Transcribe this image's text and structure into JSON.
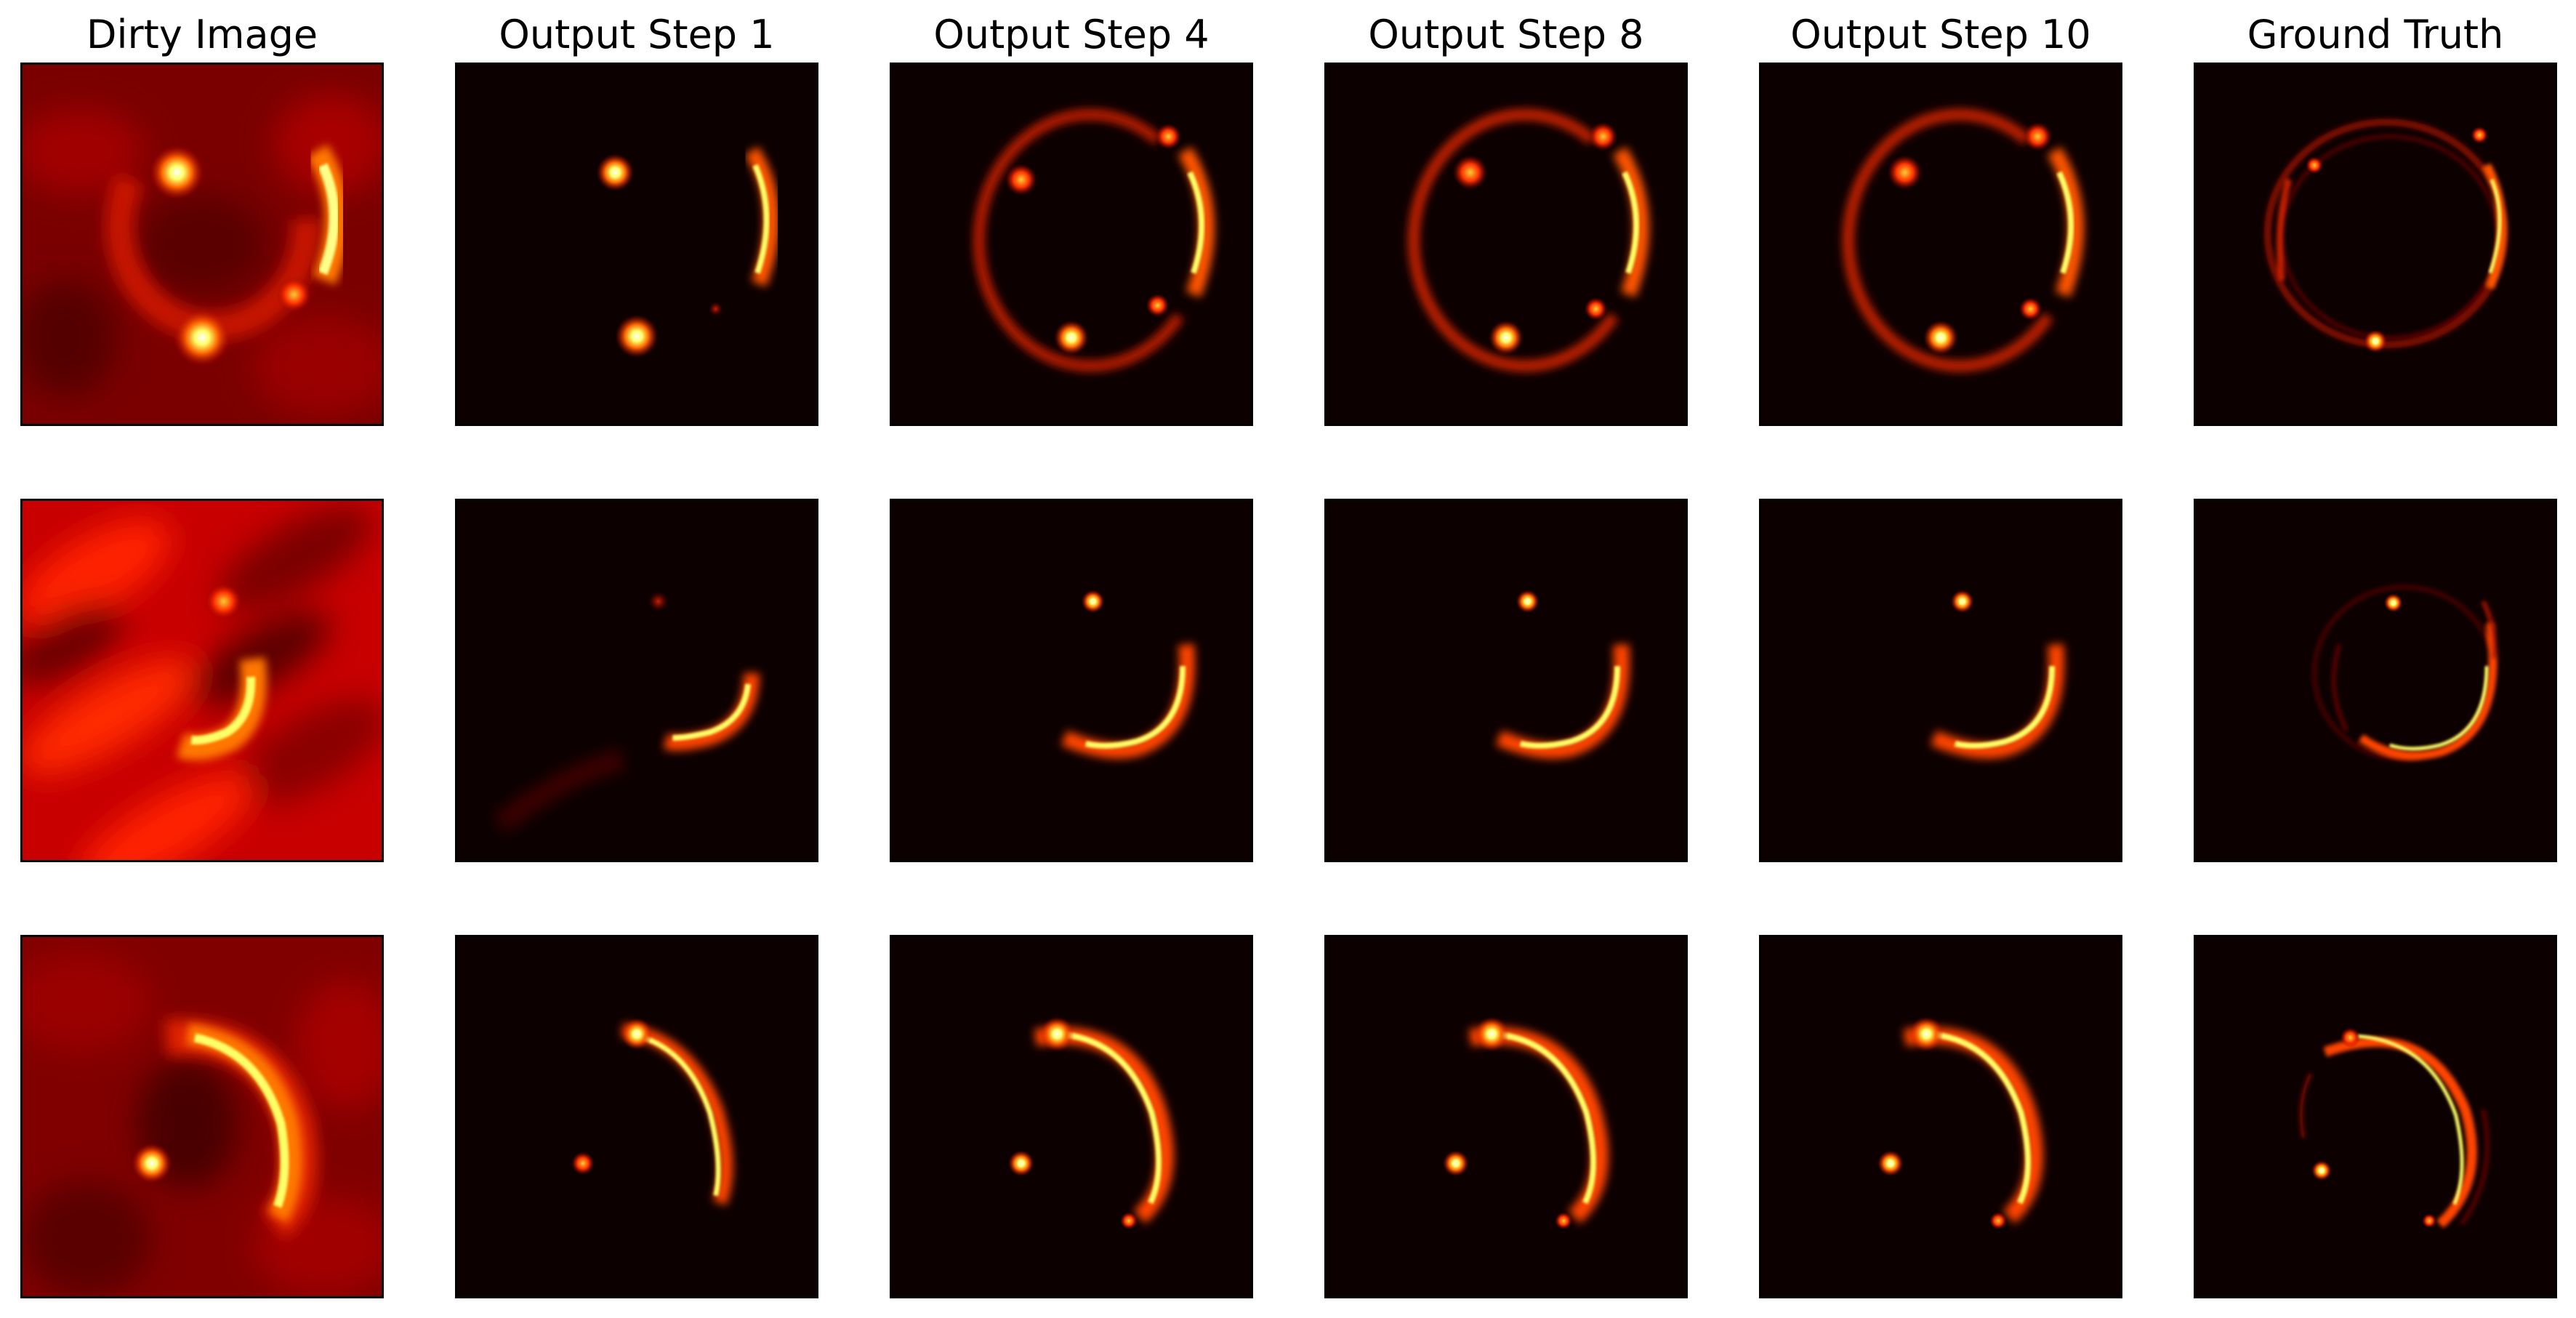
{
  "columns": [
    {
      "title": "Dirty Image"
    },
    {
      "title": "Output Step 1"
    },
    {
      "title": "Output Step 4"
    },
    {
      "title": "Output Step 8"
    },
    {
      "title": "Output Step 10"
    },
    {
      "title": "Ground Truth"
    }
  ],
  "colormap": {
    "dark": "#0d0000",
    "red": "#b00000",
    "orange": "#ff6600",
    "yellow": "#ffff66",
    "white": "#ffffff"
  }
}
